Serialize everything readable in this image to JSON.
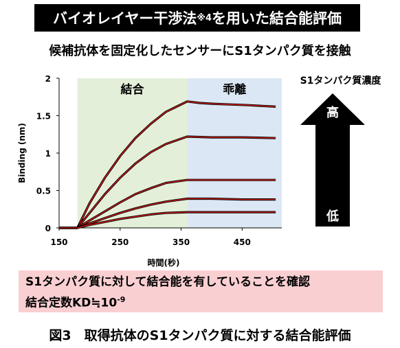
{
  "banner": {
    "text": "バイオレイヤー干渉法",
    "sup": "※4",
    "suffix": "を用いた結合能評価"
  },
  "subtitle": "候補抗体を固定化したセンサーにS1タンパク質を接触",
  "concentration": {
    "label": "S1タンパク質濃度",
    "high": "高",
    "low": "低"
  },
  "result": {
    "line1": "S1タンパク質に対して結合能を有していることを確認",
    "line2_prefix": "結合定数KD≒10",
    "line2_exp": "-9"
  },
  "caption": "図3　取得抗体のS1タンパク質に対する結合能評価",
  "colors": {
    "association_bg": "#e4efd9",
    "dissociation_bg": "#dbe7f4",
    "data": "#000000",
    "fit": "#e0201b",
    "arrow": "#000000",
    "result_bg": "#f9cfd2"
  },
  "chart_data": {
    "type": "line",
    "xlabel": "時間(秒)",
    "ylabel": "Binding (nm)",
    "xlim": [
      150,
      515
    ],
    "ylim": [
      0,
      2
    ],
    "xticks": [
      150,
      250,
      350,
      450
    ],
    "yticks": [
      0,
      0.5,
      1,
      1.5,
      2
    ],
    "ytick_labels": [
      "0",
      "0.5",
      "1",
      "1.5",
      "2"
    ],
    "phases": [
      {
        "label": "結合",
        "x": [
          180,
          360
        ]
      },
      {
        "label": "乖離",
        "x": [
          360,
          515
        ]
      }
    ],
    "series": [
      {
        "x": [
          150,
          180,
          200,
          225,
          250,
          275,
          300,
          325,
          360,
          380,
          400,
          430,
          460,
          505
        ],
        "values": [
          0,
          0,
          0.33,
          0.67,
          0.96,
          1.2,
          1.39,
          1.55,
          1.69,
          1.67,
          1.66,
          1.65,
          1.64,
          1.62
        ]
      },
      {
        "x": [
          150,
          180,
          200,
          225,
          250,
          275,
          300,
          325,
          360,
          400,
          450,
          505
        ],
        "values": [
          0,
          0,
          0.2,
          0.45,
          0.67,
          0.86,
          1.01,
          1.12,
          1.22,
          1.21,
          1.21,
          1.2
        ]
      },
      {
        "x": [
          150,
          180,
          200,
          225,
          250,
          275,
          300,
          325,
          360,
          400,
          450,
          505
        ],
        "values": [
          0,
          0,
          0.1,
          0.22,
          0.34,
          0.45,
          0.53,
          0.6,
          0.64,
          0.64,
          0.64,
          0.64
        ]
      },
      {
        "x": [
          150,
          180,
          200,
          225,
          250,
          275,
          300,
          325,
          360,
          400,
          450,
          505
        ],
        "values": [
          0,
          0,
          0.06,
          0.13,
          0.2,
          0.26,
          0.31,
          0.35,
          0.39,
          0.39,
          0.38,
          0.38
        ]
      },
      {
        "x": [
          150,
          180,
          200,
          225,
          250,
          275,
          300,
          325,
          360,
          400,
          450,
          505
        ],
        "values": [
          0,
          0,
          0.04,
          0.08,
          0.12,
          0.15,
          0.18,
          0.2,
          0.21,
          0.21,
          0.21,
          0.21
        ]
      }
    ]
  }
}
